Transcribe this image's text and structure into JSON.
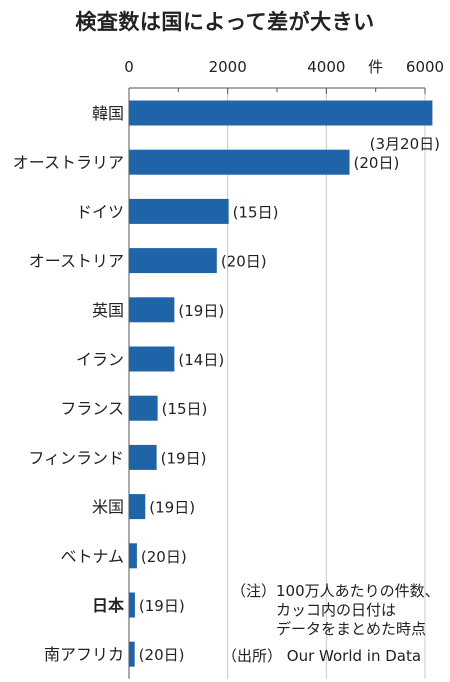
{
  "chart_data": {
    "type": "bar",
    "orientation": "horizontal",
    "title": "検査数は国によって差が大きい",
    "unit_label": "件",
    "xlim": [
      0,
      6000
    ],
    "x_ticks": [
      "0",
      "2000",
      "4000",
      "6000"
    ],
    "x_tick_values": [
      0,
      2000,
      4000,
      6000
    ],
    "grid": true,
    "bar_color": "#1f63a8",
    "highlight_category": "日本",
    "categories": [
      "韓国",
      "オーストラリア",
      "ドイツ",
      "オーストリア",
      "英国",
      "イラン",
      "フランス",
      "フィンランド",
      "米国",
      "ベトナム",
      "日本",
      "南アフリカ"
    ],
    "values": [
      6150,
      4470,
      2020,
      1780,
      920,
      920,
      580,
      560,
      330,
      160,
      120,
      115
    ],
    "data_labels": [
      "(3月20日)",
      "(20日)",
      "(15日)",
      "(20日)",
      "(19日)",
      "(14日)",
      "(15日)",
      "(19日)",
      "(19日)",
      "(20日)",
      "(19日)",
      "(20日)"
    ]
  },
  "notes": {
    "line1": "（注）100万人あたりの件数、",
    "line2": "カッコ内の日付は",
    "line3": "データをまとめた時点",
    "line4": "（出所） Our World in Data"
  }
}
